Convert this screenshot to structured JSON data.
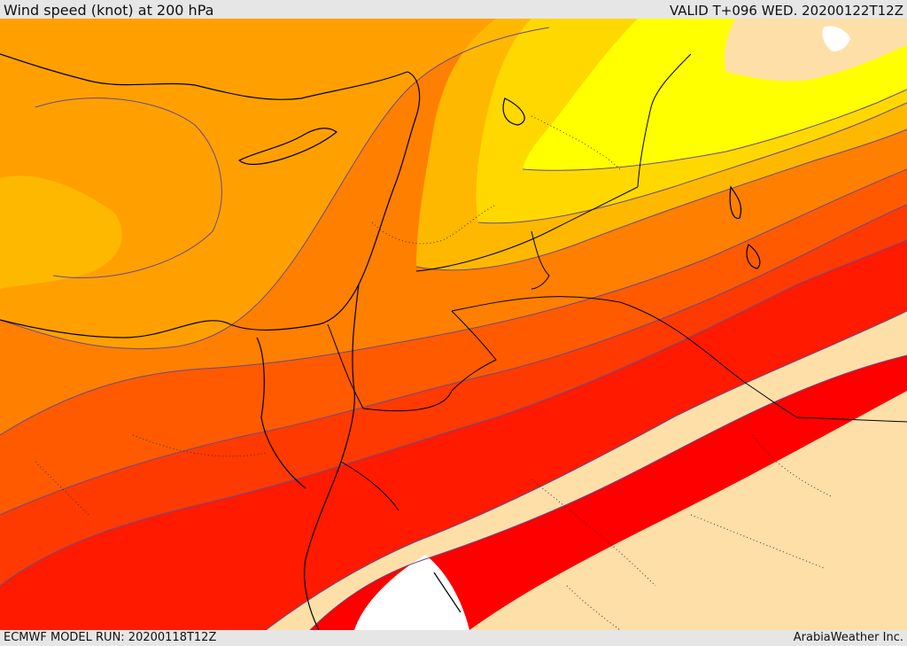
{
  "header": {
    "title": "Wind speed (knot) at 200 hPa",
    "valid": "VALID T+096 WED. 20200122T12Z"
  },
  "footer": {
    "model_run": "ECMWF MODEL RUN: 20200118T12Z",
    "credit": "ArabiaWeather Inc."
  },
  "map": {
    "variable": "wind speed",
    "units": "knot",
    "level": "200 hPa",
    "band_colors": [
      "#ffff00",
      "#ffd800",
      "#ffb800",
      "#ffa000",
      "#ff7f00",
      "#ff5a00",
      "#ff3a00",
      "#ff1a00",
      "#ff0000"
    ],
    "land_low_color": "#ffdfa8",
    "missing_color": "#ffffff",
    "contour_color": "#6a4a8a",
    "coast_color": "#000000"
  }
}
